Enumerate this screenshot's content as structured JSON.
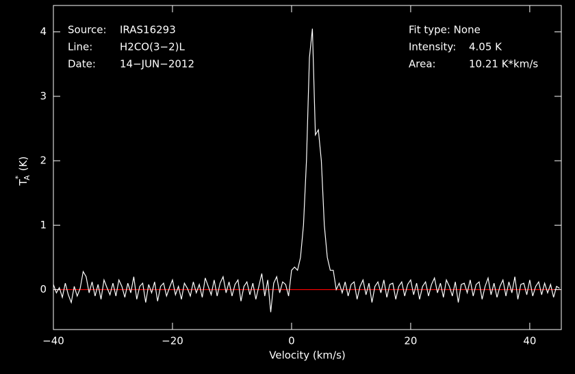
{
  "chart_data": {
    "type": "line",
    "x_label": "Velocity (km/s)",
    "y_label": {
      "main": "T",
      "sup": "*",
      "sub": "A",
      "unit": "(K)"
    },
    "annotations_left": [
      {
        "label": "Source:",
        "value": "IRAS16293"
      },
      {
        "label": "Line:",
        "value": "H2CO(3−2)L"
      },
      {
        "label": "Date:",
        "value": "14−JUN−2012"
      }
    ],
    "annotations_right": [
      {
        "label": "Fit type: None"
      },
      {
        "label": "Intensity:",
        "value": "4.05 K"
      },
      {
        "label": "Area:",
        "value": "10.21 K*km/s"
      }
    ],
    "xlim": [
      -40,
      45.3
    ],
    "ylim": [
      -0.62,
      4.41
    ],
    "xticks": [
      {
        "value": -40,
        "label": "−40"
      },
      {
        "value": -20,
        "label": "−20"
      },
      0,
      20,
      40
    ],
    "yticks": [
      0,
      1,
      2,
      3,
      4
    ],
    "baseline": 0,
    "baseline_color": "#ff0000",
    "series": [
      {
        "color": "#ffffff",
        "x": [
          -40,
          -39.5,
          -39,
          -38.5,
          -38,
          -37.5,
          -37,
          -36.5,
          -36,
          -35.5,
          -35,
          -34.5,
          -34,
          -33.5,
          -33,
          -32.5,
          -32,
          -31.5,
          -31,
          -30.5,
          -30,
          -29.5,
          -29,
          -28.5,
          -28,
          -27.5,
          -27,
          -26.5,
          -26,
          -25.5,
          -25,
          -24.5,
          -24,
          -23.5,
          -23,
          -22.5,
          -22,
          -21.5,
          -21,
          -20.5,
          -20,
          -19.5,
          -19,
          -18.5,
          -18,
          -17.5,
          -17,
          -16.5,
          -16,
          -15.5,
          -15,
          -14.5,
          -14,
          -13.5,
          -13,
          -12.5,
          -12,
          -11.5,
          -11,
          -10.5,
          -10,
          -9.5,
          -9,
          -8.5,
          -8,
          -7.5,
          -7,
          -6.5,
          -6,
          -5.5,
          -5,
          -4.5,
          -4,
          -3.5,
          -3,
          -2.5,
          -2,
          -1.5,
          -1,
          -0.5,
          0,
          0.5,
          1,
          1.5,
          2,
          2.5,
          3,
          3.5,
          4,
          4.5,
          5,
          5.5,
          6,
          6.5,
          7,
          7.5,
          8,
          8.5,
          9,
          9.5,
          10,
          10.5,
          11,
          11.5,
          12,
          12.5,
          13,
          13.5,
          14,
          14.5,
          15,
          15.5,
          16,
          16.5,
          17,
          17.5,
          18,
          18.5,
          19,
          19.5,
          20,
          20.5,
          21,
          21.5,
          22,
          22.5,
          23,
          23.5,
          24,
          24.5,
          25,
          25.5,
          26,
          26.5,
          27,
          27.5,
          28,
          28.5,
          29,
          29.5,
          30,
          30.5,
          31,
          31.5,
          32,
          32.5,
          33,
          33.5,
          34,
          34.5,
          35,
          35.5,
          36,
          36.5,
          37,
          37.5,
          38,
          38.5,
          39,
          39.5,
          40,
          40.5,
          41,
          41.5,
          42,
          42.5,
          43,
          43.5,
          44,
          44.5,
          45
        ],
        "values": [
          0.08,
          -0.05,
          0.03,
          -0.12,
          0.1,
          -0.08,
          -0.2,
          0.05,
          -0.1,
          0.02,
          0.28,
          0.2,
          -0.05,
          0.12,
          -0.1,
          0.08,
          -0.15,
          0.15,
          0.03,
          -0.08,
          0.1,
          -0.1,
          0.15,
          0.05,
          -0.12,
          0.1,
          -0.05,
          0.2,
          -0.15,
          0.05,
          0.1,
          -0.2,
          0.08,
          -0.05,
          0.12,
          -0.18,
          0.05,
          0.1,
          -0.1,
          0.03,
          0.15,
          -0.08,
          0.05,
          -0.15,
          0.1,
          0.02,
          -0.1,
          0.12,
          -0.05,
          0.08,
          -0.12,
          0.18,
          0.05,
          -0.08,
          0.15,
          -0.1,
          0.1,
          0.2,
          -0.05,
          0.12,
          -0.1,
          0.08,
          0.15,
          -0.18,
          0.05,
          0.12,
          -0.08,
          0.1,
          -0.15,
          0.05,
          0.25,
          -0.1,
          0.15,
          -0.35,
          0.1,
          0.2,
          -0.05,
          0.12,
          0.08,
          -0.1,
          0.3,
          0.35,
          0.3,
          0.5,
          1.0,
          2.0,
          3.6,
          4.05,
          2.4,
          2.48,
          2.0,
          1.0,
          0.5,
          0.3,
          0.3,
          0.0,
          0.1,
          -0.05,
          0.12,
          -0.1,
          0.08,
          0.12,
          -0.15,
          0.05,
          0.15,
          -0.08,
          0.1,
          -0.2,
          0.05,
          0.12,
          -0.05,
          0.15,
          -0.12,
          0.08,
          0.1,
          -0.15,
          0.05,
          0.12,
          -0.1,
          0.08,
          0.15,
          -0.08,
          0.1,
          -0.15,
          0.05,
          0.12,
          -0.1,
          0.08,
          0.18,
          -0.05,
          0.1,
          -0.12,
          0.15,
          0.05,
          -0.1,
          0.12,
          -0.2,
          0.08,
          0.1,
          -0.05,
          0.15,
          -0.1,
          0.08,
          0.12,
          -0.15,
          0.05,
          0.18,
          -0.08,
          0.1,
          -0.12,
          0.05,
          0.15,
          -0.1,
          0.12,
          -0.05,
          0.2,
          -0.15,
          0.08,
          0.1,
          -0.08,
          0.15,
          -0.1,
          0.05,
          0.12,
          -0.08,
          0.1,
          -0.05,
          0.08,
          -0.12,
          0.05,
          0.02
        ]
      }
    ]
  }
}
